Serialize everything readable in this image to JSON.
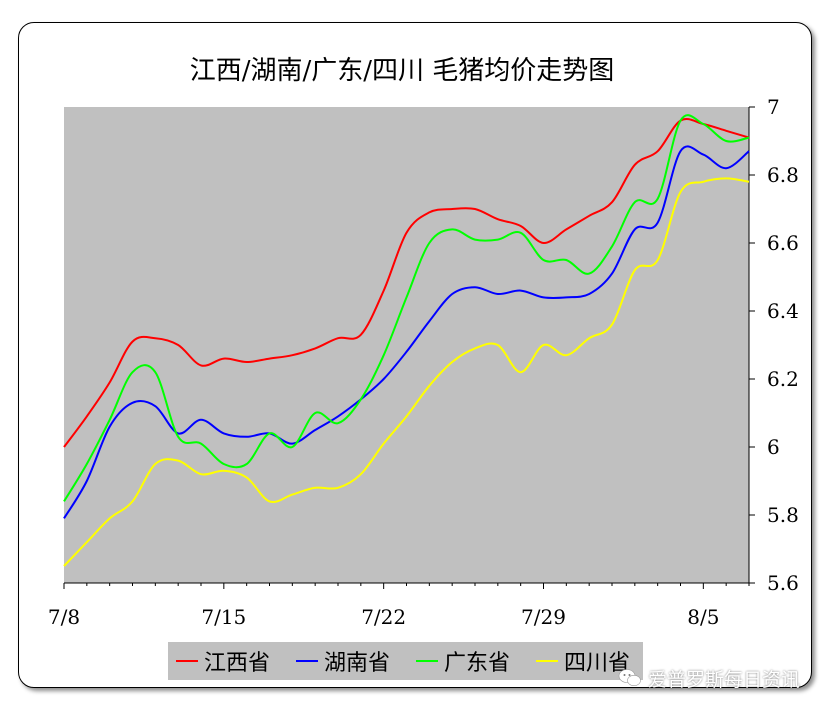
{
  "chart_data": {
    "type": "line",
    "title": "江西/湖南/广东/四川 毛猪均价走势图",
    "x_tick_labels": [
      "7/8",
      "7/15",
      "7/22",
      "7/29",
      "8/5"
    ],
    "ylim": [
      5.6,
      7.0
    ],
    "y_ticks": [
      5.6,
      5.8,
      6.0,
      6.2,
      6.4,
      6.6,
      6.8,
      7.0
    ],
    "y_tick_labels": [
      "5.6",
      "5.8",
      "6",
      "6.2",
      "6.4",
      "6.6",
      "6.8",
      "7"
    ],
    "y_axis_side": "right",
    "plot_background": "#c0c0c0",
    "grid": false,
    "legend_position": "bottom",
    "x": [
      "7/8",
      "7/9",
      "7/10",
      "7/11",
      "7/12",
      "7/13",
      "7/14",
      "7/15",
      "7/16",
      "7/17",
      "7/18",
      "7/19",
      "7/20",
      "7/21",
      "7/22",
      "7/23",
      "7/24",
      "7/25",
      "7/26",
      "7/27",
      "7/28",
      "7/29",
      "7/30",
      "7/31",
      "8/1",
      "8/2",
      "8/3",
      "8/4",
      "8/5",
      "8/6",
      "8/7"
    ],
    "series": [
      {
        "name": "江西省",
        "color": "#ff0000",
        "values": [
          6.0,
          6.09,
          6.19,
          6.31,
          6.32,
          6.3,
          6.24,
          6.26,
          6.25,
          6.26,
          6.27,
          6.29,
          6.32,
          6.33,
          6.46,
          6.63,
          6.69,
          6.7,
          6.7,
          6.67,
          6.65,
          6.6,
          6.64,
          6.68,
          6.72,
          6.83,
          6.87,
          6.96,
          6.95,
          6.93,
          6.91
        ]
      },
      {
        "name": "湖南省",
        "color": "#0000ff",
        "values": [
          5.79,
          5.9,
          6.06,
          6.13,
          6.12,
          6.04,
          6.08,
          6.04,
          6.03,
          6.04,
          6.01,
          6.05,
          6.09,
          6.14,
          6.2,
          6.28,
          6.37,
          6.45,
          6.47,
          6.45,
          6.46,
          6.44,
          6.44,
          6.45,
          6.51,
          6.64,
          6.66,
          6.87,
          6.86,
          6.82,
          6.87
        ]
      },
      {
        "name": "广东省",
        "color": "#00ff00",
        "values": [
          5.84,
          5.95,
          6.08,
          6.22,
          6.22,
          6.03,
          6.01,
          5.95,
          5.95,
          6.04,
          6.0,
          6.1,
          6.07,
          6.14,
          6.27,
          6.44,
          6.6,
          6.64,
          6.61,
          6.61,
          6.63,
          6.55,
          6.55,
          6.51,
          6.59,
          6.72,
          6.73,
          6.96,
          6.95,
          6.9,
          6.91
        ]
      },
      {
        "name": "四川省",
        "color": "#ffff00",
        "values": [
          5.65,
          5.72,
          5.79,
          5.84,
          5.95,
          5.96,
          5.92,
          5.93,
          5.91,
          5.84,
          5.86,
          5.88,
          5.88,
          5.92,
          6.01,
          6.09,
          6.18,
          6.25,
          6.29,
          6.3,
          6.22,
          6.3,
          6.27,
          6.32,
          6.36,
          6.52,
          6.55,
          6.75,
          6.78,
          6.79,
          6.78
        ]
      }
    ]
  },
  "watermark": {
    "text": "爱普罗斯每日资讯",
    "icon": "wechat-icon"
  }
}
